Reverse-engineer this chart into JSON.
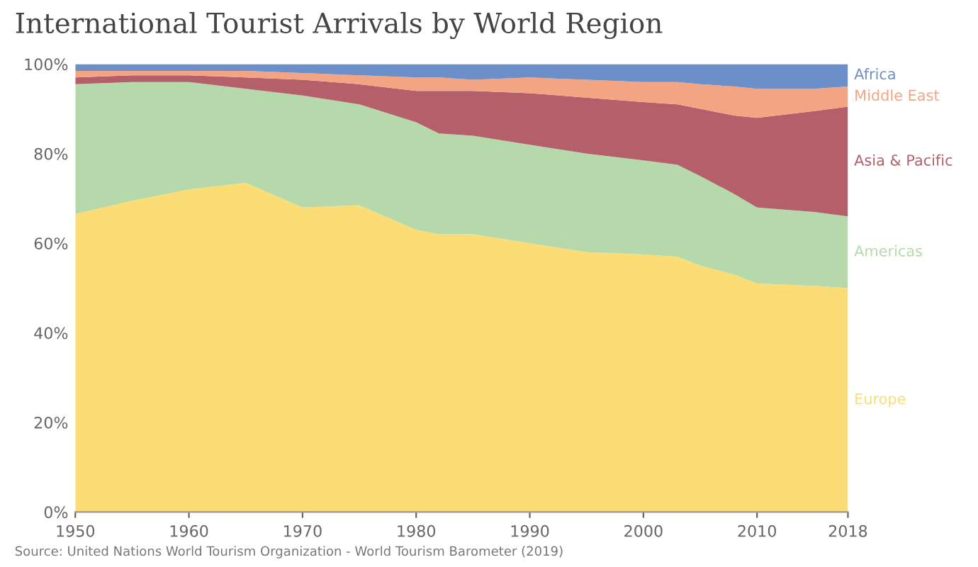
{
  "chart_data": {
    "type": "area",
    "stacked": true,
    "title": "International Tourist Arrivals by World Region",
    "x": [
      1950,
      1955,
      1960,
      1965,
      1970,
      1975,
      1980,
      1982,
      1985,
      1990,
      1995,
      2000,
      2003,
      2005,
      2008,
      2010,
      2015,
      2018
    ],
    "series": [
      {
        "name": "Europe",
        "color": "#fcdc74",
        "values": [
          66.5,
          69.5,
          72,
          73.5,
          68,
          68.5,
          63,
          62,
          62,
          60,
          58,
          57.5,
          57,
          55,
          53,
          51,
          50.5,
          50
        ]
      },
      {
        "name": "Americas",
        "color": "#b5d9ab",
        "values": [
          29,
          26.5,
          24,
          21,
          25,
          22.5,
          24,
          22.5,
          22,
          22,
          22,
          21,
          20.5,
          20,
          18,
          17,
          16.5,
          16
        ]
      },
      {
        "name": "Asia & Pacific",
        "color": "#b45f6a",
        "values": [
          1.5,
          1.5,
          1.5,
          2.5,
          3.5,
          4.5,
          7,
          9.5,
          10,
          11.5,
          12.5,
          13,
          13.5,
          15,
          17.5,
          20,
          22.5,
          24.5
        ]
      },
      {
        "name": "Middle East",
        "color": "#f3a583",
        "values": [
          1.5,
          1,
          1,
          1.5,
          1.5,
          2,
          3,
          3,
          2.5,
          3.5,
          4,
          4.5,
          5,
          5.5,
          6.5,
          6.5,
          5,
          4.5
        ]
      },
      {
        "name": "Africa",
        "color": "#6b8fc8",
        "values": [
          1.5,
          1.5,
          1.5,
          1.5,
          2,
          2.5,
          3,
          3,
          3.5,
          3,
          3.5,
          4,
          4,
          4.5,
          5,
          5.5,
          5.5,
          5
        ]
      }
    ],
    "xlim": [
      1950,
      2018
    ],
    "xticks": [
      1950,
      1960,
      1970,
      1980,
      1990,
      2000,
      2010,
      2018
    ],
    "ylim": [
      0,
      100
    ],
    "yticks": [
      {
        "value": 0,
        "label": "0%"
      },
      {
        "value": 20,
        "label": "20%"
      },
      {
        "value": 40,
        "label": "40%"
      },
      {
        "value": 60,
        "label": "60%"
      },
      {
        "value": 80,
        "label": "80%"
      },
      {
        "value": 100,
        "label": "100%"
      }
    ],
    "grid": false,
    "legend": "right",
    "annotations": [
      "Source: United Nations World Tourism Organization - World Tourism Barometer (2019)"
    ]
  }
}
